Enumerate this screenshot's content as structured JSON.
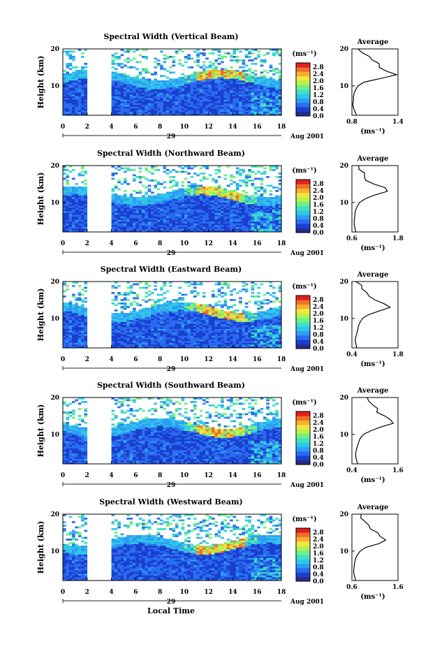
{
  "figure": {
    "xlabel": "Local Time",
    "date_suffix": "Aug 2001",
    "date_day": "29",
    "colorbar_unit": "(ms⁻¹)",
    "avg_title": "Average",
    "avg_unit": "(ms⁻¹)"
  },
  "colors": {
    "scale": [
      "#2a2a8c",
      "#1a3fd0",
      "#2a6cf0",
      "#2e9ef5",
      "#30c8e8",
      "#40e0c0",
      "#70f080",
      "#b8f050",
      "#f0e840",
      "#f8b030",
      "#f07028",
      "#e02020"
    ]
  },
  "chart_data": [
    {
      "type": "heatmap",
      "title": "Spectral Width (Vertical Beam)",
      "ylabel": "Height (km)",
      "xlim": [
        0,
        18
      ],
      "ylim": [
        2,
        20
      ],
      "xticks": [
        "0",
        "2",
        "4",
        "6",
        "8",
        "10",
        "12",
        "14",
        "16",
        "18"
      ],
      "yticks": [
        "20",
        "10"
      ],
      "gap": [
        2,
        4
      ],
      "colorbar_ticks": [
        "2.8",
        "2.4",
        "2.0",
        "1.6",
        "1.2",
        "0.8",
        "0.4",
        "0.0"
      ],
      "profile": {
        "xlim": [
          0.8,
          1.4
        ],
        "xticks": [
          "0.8",
          "1.4"
        ],
        "yticks": [
          "20",
          "10"
        ],
        "heights": [
          2,
          3,
          4,
          5,
          6,
          7,
          8,
          9,
          10,
          11,
          12,
          13,
          14,
          15,
          16,
          17,
          18,
          19,
          20
        ],
        "values": [
          0.86,
          0.84,
          0.82,
          0.81,
          0.82,
          0.82,
          0.83,
          0.85,
          0.88,
          0.96,
          1.2,
          1.35,
          1.28,
          1.18,
          1.12,
          1.06,
          1.0,
          0.95,
          0.88
        ]
      }
    },
    {
      "type": "heatmap",
      "title": "Spectral Width (Northward Beam)",
      "ylabel": "Height (km)",
      "xlim": [
        0,
        18
      ],
      "ylim": [
        2,
        20
      ],
      "xticks": [
        "0",
        "2",
        "4",
        "6",
        "8",
        "10",
        "12",
        "14",
        "16",
        "18"
      ],
      "yticks": [
        "20",
        "10"
      ],
      "gap": [
        2,
        4
      ],
      "colorbar_ticks": [
        "2.8",
        "2.4",
        "2.0",
        "1.6",
        "1.2",
        "0.8",
        "0.4",
        "0.0"
      ],
      "profile": {
        "xlim": [
          0.6,
          1.8
        ],
        "xticks": [
          "0.6",
          "1.8"
        ],
        "yticks": [
          "20",
          "10"
        ],
        "heights": [
          2,
          3,
          4,
          5,
          6,
          7,
          8,
          9,
          10,
          11,
          12,
          13,
          14,
          15,
          16,
          17,
          18,
          19,
          20
        ],
        "values": [
          0.7,
          0.68,
          0.66,
          0.66,
          0.67,
          0.68,
          0.7,
          0.74,
          0.8,
          0.95,
          1.25,
          1.5,
          1.4,
          1.15,
          1.0,
          0.92,
          0.88,
          0.82,
          0.75
        ]
      }
    },
    {
      "type": "heatmap",
      "title": "Spectral Width (Eastward Beam)",
      "ylabel": "Height (km)",
      "xlim": [
        0,
        18
      ],
      "ylim": [
        2,
        20
      ],
      "xticks": [
        "0",
        "2",
        "4",
        "6",
        "8",
        "10",
        "12",
        "14",
        "16",
        "18"
      ],
      "yticks": [
        "20",
        "10"
      ],
      "gap": [
        2,
        4
      ],
      "colorbar_ticks": [
        "2.8",
        "2.4",
        "2.0",
        "1.6",
        "1.2",
        "0.8",
        "0.4",
        "0.0"
      ],
      "profile": {
        "xlim": [
          0.4,
          1.8
        ],
        "xticks": [
          "0.4",
          "1.8"
        ],
        "yticks": [
          "20",
          "10"
        ],
        "heights": [
          2,
          3,
          4,
          5,
          6,
          7,
          8,
          9,
          10,
          11,
          12,
          13,
          14,
          15,
          16,
          17,
          18,
          19,
          20
        ],
        "values": [
          0.55,
          0.52,
          0.5,
          0.52,
          0.55,
          0.58,
          0.6,
          0.65,
          0.72,
          0.9,
          1.25,
          1.55,
          1.4,
          1.1,
          0.95,
          0.85,
          0.78,
          0.7,
          0.6
        ]
      }
    },
    {
      "type": "heatmap",
      "title": "Spectral Width (Southward Beam)",
      "ylabel": "Height (km)",
      "xlim": [
        0,
        18
      ],
      "ylim": [
        2,
        20
      ],
      "xticks": [
        "0",
        "2",
        "4",
        "6",
        "8",
        "10",
        "12",
        "14",
        "16",
        "18"
      ],
      "yticks": [
        "20",
        "10"
      ],
      "gap": [
        2,
        4
      ],
      "colorbar_ticks": [
        "2.8",
        "2.4",
        "2.0",
        "1.6",
        "1.2",
        "0.8",
        "0.4",
        "0.0"
      ],
      "profile": {
        "xlim": [
          0.4,
          1.6
        ],
        "xticks": [
          "0.4",
          "1.6"
        ],
        "yticks": [
          "20",
          "10"
        ],
        "heights": [
          2,
          3,
          4,
          5,
          6,
          7,
          8,
          9,
          10,
          11,
          12,
          13,
          14,
          15,
          16,
          17,
          18,
          19,
          20
        ],
        "values": [
          0.55,
          0.52,
          0.5,
          0.5,
          0.52,
          0.55,
          0.58,
          0.62,
          0.7,
          0.9,
          1.2,
          1.45,
          1.35,
          1.2,
          1.1,
          1.0,
          0.92,
          0.85,
          0.75
        ]
      }
    },
    {
      "type": "heatmap",
      "title": "Spectral Width (Westward Beam)",
      "ylabel": "Height (km)",
      "xlim": [
        0,
        18
      ],
      "ylim": [
        2,
        20
      ],
      "xticks": [
        "0",
        "2",
        "4",
        "6",
        "8",
        "10",
        "12",
        "14",
        "16",
        "18"
      ],
      "yticks": [
        "20",
        "10"
      ],
      "gap": [
        2,
        4
      ],
      "colorbar_ticks": [
        "2.8",
        "2.4",
        "2.0",
        "1.6",
        "1.2",
        "0.8",
        "0.4",
        "0.0"
      ],
      "profile": {
        "xlim": [
          0.6,
          1.6
        ],
        "xticks": [
          "0.6",
          "1.6"
        ],
        "yticks": [
          "20",
          "10"
        ],
        "heights": [
          2,
          3,
          4,
          5,
          6,
          7,
          8,
          9,
          10,
          11,
          12,
          13,
          14,
          15,
          16,
          17,
          18,
          19,
          20
        ],
        "values": [
          0.68,
          0.66,
          0.64,
          0.64,
          0.65,
          0.66,
          0.68,
          0.72,
          0.78,
          0.9,
          1.15,
          1.35,
          1.25,
          1.15,
          1.05,
          0.98,
          0.92,
          0.85,
          0.75
        ]
      }
    }
  ]
}
